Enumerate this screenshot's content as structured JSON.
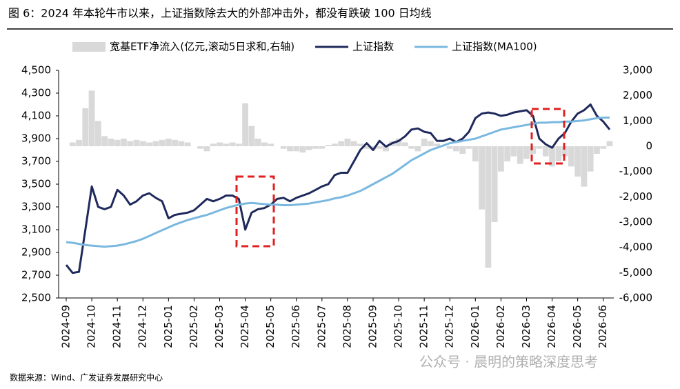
{
  "chart_data": {
    "type": "combo",
    "title": "图 6：2024 年本轮牛市以来，上证指数除去大的外部冲击外，都没有跌破 100 日均线",
    "source": "数据来源：Wind、广发证券发展研究中心",
    "watermark": "公众号 · 晨明的策略深度思考",
    "categories": [
      "2024-09",
      null,
      null,
      null,
      "2024-10",
      null,
      null,
      null,
      "2024-11",
      null,
      null,
      null,
      "2024-12",
      null,
      null,
      null,
      "2025-01",
      null,
      null,
      null,
      "2025-02",
      null,
      null,
      null,
      "2025-03",
      null,
      null,
      null,
      "2025-04",
      null,
      null,
      null,
      "2025-05",
      null,
      null,
      null,
      "2025-06",
      null,
      null,
      null,
      "2025-07",
      null,
      null,
      null,
      "2025-08",
      null,
      null,
      null,
      "2025-09",
      null,
      null,
      null,
      "2025-10",
      null,
      null,
      null,
      "2025-11",
      null,
      null,
      null,
      "2025-12",
      null,
      null,
      null,
      "2026-01",
      null,
      null,
      null,
      "2026-02",
      null,
      null,
      null,
      "2026-03",
      null,
      null,
      null,
      "2026-04",
      null,
      null,
      null,
      "2026-05",
      null,
      null,
      null,
      "2026-06",
      null
    ],
    "ylim": [
      2500,
      4500
    ],
    "yticks": [
      {
        "value": 2500,
        "label": "2,500"
      },
      {
        "value": 2700,
        "label": "2,700"
      },
      {
        "value": 2900,
        "label": "2,900"
      },
      {
        "value": 3100,
        "label": "3,100"
      },
      {
        "value": 3300,
        "label": "3,300"
      },
      {
        "value": 3500,
        "label": "3,500"
      },
      {
        "value": 3700,
        "label": "3,700"
      },
      {
        "value": 3900,
        "label": "3,900"
      },
      {
        "value": 4100,
        "label": "4,100"
      },
      {
        "value": 4300,
        "label": "4,300"
      },
      {
        "value": 4500,
        "label": "4,500"
      }
    ],
    "y2lim": [
      -6000,
      3000
    ],
    "y2ticks": [
      {
        "value": -6000,
        "label": "-6,000"
      },
      {
        "value": -5000,
        "label": "-5,000"
      },
      {
        "value": -4000,
        "label": "-4,000"
      },
      {
        "value": -3000,
        "label": "-3,000"
      },
      {
        "value": -2000,
        "label": "-2,000"
      },
      {
        "value": -1000,
        "label": "-1,000"
      },
      0,
      {
        "value": 1000,
        "label": "1,000"
      },
      {
        "value": 2000,
        "label": "2,000"
      },
      {
        "value": 3000,
        "label": "3,000"
      }
    ],
    "legend": "top",
    "series": [
      {
        "name": "宽基ETF净流入(亿元,滚动5日求和,右轴)",
        "type": "bar",
        "axis": "y2",
        "color": "#d9d9d9",
        "values": [
          0,
          150,
          250,
          1500,
          2200,
          1000,
          400,
          300,
          250,
          300,
          200,
          250,
          200,
          150,
          200,
          250,
          300,
          250,
          200,
          150,
          0,
          -100,
          -200,
          100,
          150,
          100,
          150,
          100,
          1700,
          800,
          300,
          150,
          100,
          0,
          -100,
          -200,
          -200,
          -250,
          -150,
          -100,
          -100,
          50,
          100,
          200,
          300,
          200,
          100,
          -100,
          -150,
          -100,
          -200,
          200,
          300,
          150,
          -100,
          -200,
          300,
          200,
          100,
          0,
          -100,
          -200,
          -300,
          -100,
          -600,
          -2500,
          -4800,
          -3000,
          -1000,
          -600,
          -400,
          -700,
          -500,
          -300,
          -100,
          -400,
          -800,
          -600,
          -400,
          -800,
          -1200,
          -1600,
          -1000,
          -300,
          -100,
          200
        ]
      },
      {
        "name": "上证指数",
        "type": "line",
        "color": "#1f2a5c",
        "values": [
          2790,
          2720,
          2730,
          3100,
          3480,
          3300,
          3280,
          3300,
          3450,
          3400,
          3320,
          3350,
          3400,
          3420,
          3380,
          3350,
          3200,
          3230,
          3240,
          3250,
          3270,
          3320,
          3370,
          3350,
          3370,
          3400,
          3400,
          3370,
          3100,
          3250,
          3280,
          3290,
          3320,
          3370,
          3380,
          3350,
          3380,
          3400,
          3420,
          3450,
          3480,
          3500,
          3580,
          3600,
          3600,
          3700,
          3800,
          3860,
          3800,
          3880,
          3830,
          3860,
          3880,
          3920,
          3980,
          3990,
          3960,
          3950,
          3880,
          3880,
          3900,
          3870,
          3900,
          3960,
          4080,
          4120,
          4130,
          4120,
          4100,
          4110,
          4130,
          4140,
          4150,
          4100,
          3900,
          3850,
          3820,
          3900,
          3950,
          4050,
          4120,
          4150,
          4200,
          4100,
          4050,
          3980
        ]
      },
      {
        "name": "上证指数(MA100)",
        "type": "line",
        "color": "#7ab8e0",
        "values": [
          2990,
          2985,
          2975,
          2965,
          2960,
          2955,
          2950,
          2955,
          2960,
          2970,
          2985,
          3000,
          3020,
          3045,
          3070,
          3095,
          3120,
          3145,
          3165,
          3185,
          3200,
          3215,
          3230,
          3250,
          3270,
          3290,
          3305,
          3320,
          3330,
          3335,
          3330,
          3325,
          3320,
          3320,
          3315,
          3315,
          3320,
          3325,
          3330,
          3340,
          3350,
          3360,
          3375,
          3385,
          3400,
          3420,
          3440,
          3470,
          3500,
          3530,
          3560,
          3590,
          3630,
          3670,
          3710,
          3740,
          3770,
          3800,
          3820,
          3840,
          3860,
          3870,
          3880,
          3890,
          3900,
          3920,
          3940,
          3960,
          3980,
          3990,
          4000,
          4010,
          4020,
          4030,
          4040,
          4040,
          4045,
          4045,
          4050,
          4050,
          4055,
          4060,
          4070,
          4080,
          4085,
          4085
        ]
      }
    ]
  }
}
